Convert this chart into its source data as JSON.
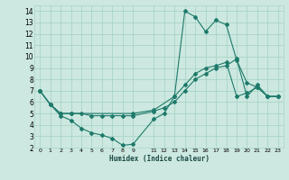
{
  "title": "",
  "xlabel": "Humidex (Indice chaleur)",
  "bg_color": "#cce8e0",
  "line_color": "#1e7a6a",
  "grid_color": "#aad4c8",
  "xlim": [
    -0.5,
    23.5
  ],
  "ylim": [
    2,
    14.5
  ],
  "xtick_vals": [
    0,
    1,
    2,
    3,
    4,
    5,
    6,
    7,
    8,
    9,
    11,
    12,
    13,
    14,
    15,
    16,
    17,
    18,
    19,
    20,
    21,
    22,
    23
  ],
  "xtick_labels": [
    "0",
    "1",
    "2",
    "3",
    "4",
    "5",
    "6",
    "7",
    "8",
    "9",
    "11",
    "12",
    "13",
    "14",
    "15",
    "16",
    "17",
    "18",
    "19",
    "20",
    "21",
    "22",
    "23"
  ],
  "ytick_vals": [
    2,
    3,
    4,
    5,
    6,
    7,
    8,
    9,
    10,
    11,
    12,
    13,
    14
  ],
  "lines": [
    {
      "x": [
        0,
        1,
        2,
        3,
        4,
        5,
        6,
        7,
        8,
        9,
        11,
        12,
        13,
        14,
        15,
        16,
        17,
        18,
        19,
        20,
        21,
        22,
        23
      ],
      "y": [
        7.0,
        5.8,
        4.8,
        4.4,
        3.7,
        3.3,
        3.1,
        2.8,
        2.2,
        2.3,
        4.5,
        5.0,
        6.5,
        7.5,
        8.5,
        9.0,
        9.2,
        9.5,
        6.5,
        6.8,
        7.3,
        6.5,
        6.5
      ]
    },
    {
      "x": [
        0,
        1,
        2,
        3,
        4,
        5,
        6,
        7,
        8,
        9,
        11,
        12,
        13,
        14,
        15,
        16,
        17,
        18,
        19,
        20,
        21,
        22,
        23
      ],
      "y": [
        7.0,
        5.8,
        5.0,
        5.0,
        5.0,
        4.8,
        4.8,
        4.8,
        4.8,
        4.8,
        5.2,
        5.5,
        6.0,
        7.0,
        8.0,
        8.5,
        9.0,
        9.2,
        9.8,
        6.5,
        7.5,
        6.5,
        6.5
      ]
    },
    {
      "x": [
        0,
        1,
        2,
        3,
        9,
        11,
        13,
        14,
        15,
        16,
        17,
        18,
        19,
        20,
        21,
        22,
        23
      ],
      "y": [
        7.0,
        5.8,
        5.0,
        5.0,
        5.0,
        5.3,
        6.5,
        14.0,
        13.5,
        12.2,
        13.2,
        12.8,
        9.7,
        7.7,
        7.3,
        6.5,
        6.5
      ]
    }
  ]
}
